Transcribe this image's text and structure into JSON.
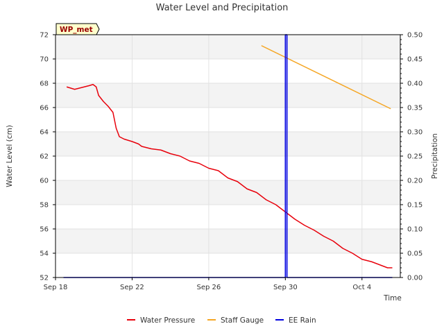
{
  "chart_data": {
    "type": "line",
    "title": "Water Level and Precipitation",
    "badge": "WP_met",
    "xlabel": "Time",
    "ylabel": "Water Level (cm)",
    "y2label": "Precipitation",
    "xlim": [
      "2023-09-18",
      "2023-10-06"
    ],
    "ylim": [
      52,
      72
    ],
    "y2lim": [
      0,
      0.5
    ],
    "x_ticks": [
      {
        "date": "2023-09-18",
        "label": "Sep 18"
      },
      {
        "date": "2023-09-22",
        "label": "Sep 22"
      },
      {
        "date": "2023-09-26",
        "label": "Sep 26"
      },
      {
        "date": "2023-09-30",
        "label": "Sep 30"
      },
      {
        "date": "2023-10-04",
        "label": "Oct 4"
      }
    ],
    "y_ticks": [
      {
        "value": 52,
        "label": "52"
      },
      {
        "value": 54,
        "label": "54"
      },
      {
        "value": 56,
        "label": "56"
      },
      {
        "value": 58,
        "label": "58"
      },
      {
        "value": 60,
        "label": "60"
      },
      {
        "value": 62,
        "label": "62"
      },
      {
        "value": 64,
        "label": "64"
      },
      {
        "value": 66,
        "label": "66"
      },
      {
        "value": 68,
        "label": "68"
      },
      {
        "value": 70,
        "label": "70"
      },
      {
        "value": 72,
        "label": "72"
      }
    ],
    "y2_ticks": [
      {
        "value": 0,
        "label": "0.00"
      },
      {
        "value": 0.05,
        "label": "0.05"
      },
      {
        "value": 0.1,
        "label": "0.10"
      },
      {
        "value": 0.15,
        "label": "0.15"
      },
      {
        "value": 0.2,
        "label": "0.20"
      },
      {
        "value": 0.25,
        "label": "0.25"
      },
      {
        "value": 0.3,
        "label": "0.30"
      },
      {
        "value": 0.35,
        "label": "0.35"
      },
      {
        "value": 0.4,
        "label": "0.40"
      },
      {
        "value": 0.45,
        "label": "0.45"
      },
      {
        "value": 0.5,
        "label": "0.50"
      }
    ],
    "grid": true,
    "legend_position": "bottom",
    "series": [
      {
        "name": "Water Pressure",
        "axis": "left",
        "color": "#e8000b",
        "points": [
          [
            "2023-09-18 14:00",
            67.7
          ],
          [
            "2023-09-18 19:00",
            67.6
          ],
          [
            "2023-09-19 00:00",
            67.5
          ],
          [
            "2023-09-19 06:00",
            67.6
          ],
          [
            "2023-09-19 12:00",
            67.7
          ],
          [
            "2023-09-19 18:00",
            67.8
          ],
          [
            "2023-09-19 23:00",
            67.9
          ],
          [
            "2023-09-20 03:00",
            67.7
          ],
          [
            "2023-09-20 06:00",
            67.0
          ],
          [
            "2023-09-20 12:00",
            66.5
          ],
          [
            "2023-09-20 18:00",
            66.1
          ],
          [
            "2023-09-21 00:00",
            65.6
          ],
          [
            "2023-09-21 04:00",
            64.3
          ],
          [
            "2023-09-21 08:00",
            63.6
          ],
          [
            "2023-09-21 14:00",
            63.4
          ],
          [
            "2023-09-22 00:00",
            63.2
          ],
          [
            "2023-09-22 08:00",
            63.0
          ],
          [
            "2023-09-22 12:00",
            62.8
          ],
          [
            "2023-09-23 00:00",
            62.6
          ],
          [
            "2023-09-23 12:00",
            62.5
          ],
          [
            "2023-09-24 00:00",
            62.2
          ],
          [
            "2023-09-24 12:00",
            62.0
          ],
          [
            "2023-09-25 00:00",
            61.6
          ],
          [
            "2023-09-25 12:00",
            61.4
          ],
          [
            "2023-09-26 00:00",
            61.0
          ],
          [
            "2023-09-26 12:00",
            60.8
          ],
          [
            "2023-09-27 00:00",
            60.2
          ],
          [
            "2023-09-27 12:00",
            59.9
          ],
          [
            "2023-09-28 00:00",
            59.3
          ],
          [
            "2023-09-28 12:00",
            59.0
          ],
          [
            "2023-09-29 00:00",
            58.4
          ],
          [
            "2023-09-29 12:00",
            58.0
          ],
          [
            "2023-09-30 00:00",
            57.4
          ],
          [
            "2023-09-30 12:00",
            56.8
          ],
          [
            "2023-10-01 00:00",
            56.3
          ],
          [
            "2023-10-01 12:00",
            55.9
          ],
          [
            "2023-10-02 00:00",
            55.4
          ],
          [
            "2023-10-02 12:00",
            55.0
          ],
          [
            "2023-10-03 00:00",
            54.4
          ],
          [
            "2023-10-03 12:00",
            54.0
          ],
          [
            "2023-10-04 00:00",
            53.5
          ],
          [
            "2023-10-04 12:00",
            53.3
          ],
          [
            "2023-10-05 00:00",
            53.0
          ],
          [
            "2023-10-05 08:00",
            52.8
          ],
          [
            "2023-10-05 14:00",
            52.8
          ]
        ]
      },
      {
        "name": "Staff Gauge",
        "axis": "left",
        "color": "#f5a623",
        "points": [
          [
            "2023-09-28 18:00",
            71.1
          ],
          [
            "2023-10-05 12:00",
            65.9
          ]
        ]
      },
      {
        "name": "EE Rain",
        "axis": "right",
        "color": "#0000e0",
        "points": [
          [
            "2023-09-18 10:00",
            0.0
          ],
          [
            "2023-09-30 00:00",
            0.0
          ],
          [
            "2023-09-30 00:00",
            0.5
          ],
          [
            "2023-09-30 02:00",
            0.5
          ],
          [
            "2023-09-30 02:00",
            0.0
          ],
          [
            "2023-10-05 14:00",
            0.0
          ]
        ]
      }
    ]
  }
}
